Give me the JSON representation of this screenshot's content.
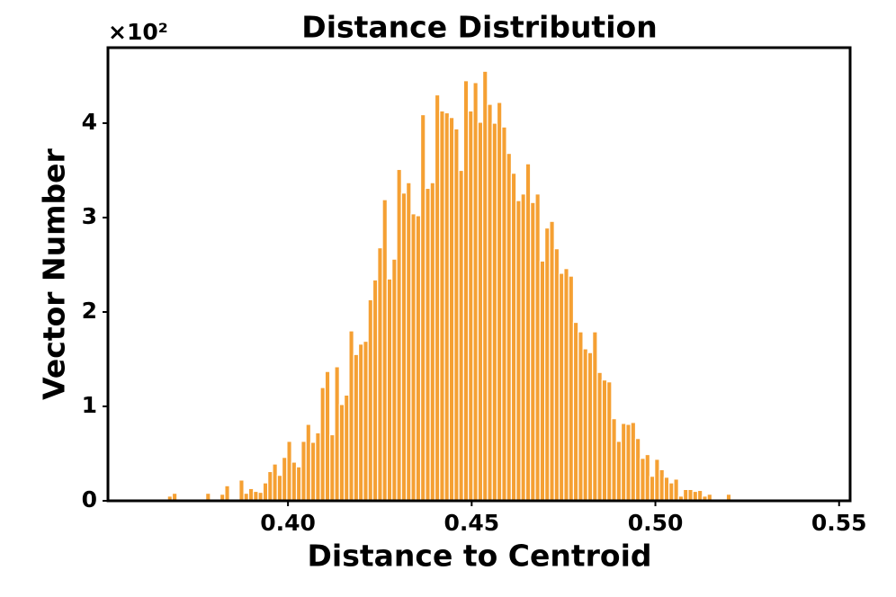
{
  "chart_data": {
    "type": "histogram",
    "title": "Distance Distribution",
    "x_label": "Distance to Centroid",
    "y_label": "Vector Number",
    "y_scale_label": "×10²",
    "color": "#f5a033",
    "bins": [
      0.3672,
      0.3685,
      0.3698,
      0.3711,
      0.3724,
      0.3737,
      0.375,
      0.3763,
      0.3776,
      0.3789,
      0.3802,
      0.3815,
      0.3828,
      0.3841,
      0.3854,
      0.3867,
      0.388,
      0.3893,
      0.3906,
      0.3919,
      0.3932,
      0.3945,
      0.3958,
      0.3971,
      0.3984,
      0.3997,
      0.401,
      0.4023,
      0.4036,
      0.4049,
      0.4062,
      0.4075,
      0.4088,
      0.4101,
      0.4114,
      0.4127,
      0.414,
      0.4153,
      0.4166,
      0.4179,
      0.4192,
      0.4205,
      0.4218,
      0.4231,
      0.4244,
      0.4257,
      0.427,
      0.4283,
      0.4296,
      0.4309,
      0.4322,
      0.4335,
      0.4348,
      0.4361,
      0.4374,
      0.4387,
      0.44,
      0.4413,
      0.4426,
      0.4439,
      0.4452,
      0.4465,
      0.4478,
      0.4491,
      0.4504,
      0.4517,
      0.453,
      0.4543,
      0.4556,
      0.4569,
      0.4582,
      0.4595,
      0.4608,
      0.4621,
      0.4634,
      0.4647,
      0.466,
      0.4673,
      0.4686,
      0.4699,
      0.4712,
      0.4725,
      0.4738,
      0.4751,
      0.4764,
      0.4777,
      0.479,
      0.4803,
      0.4816,
      0.4829,
      0.4842,
      0.4855,
      0.4868,
      0.4881,
      0.4894,
      0.4907,
      0.492,
      0.4933,
      0.4946,
      0.4959,
      0.4972,
      0.4985,
      0.4998,
      0.5011,
      0.5024,
      0.5037,
      0.505,
      0.5063,
      0.5076,
      0.5089,
      0.5102,
      0.5115,
      0.5128,
      0.5141,
      0.5154,
      0.5167,
      0.518,
      0.5193,
      0.5206,
      0.5219,
      0.5232,
      0.5245,
      0.5258,
      0.5271
    ],
    "values": [
      0.05,
      0.08,
      0,
      0,
      0,
      0,
      0,
      0,
      0.08,
      0,
      0,
      0.07,
      0.16,
      0,
      0.02,
      0.22,
      0.08,
      0.13,
      0.1,
      0.09,
      0.19,
      0.31,
      0.39,
      0.27,
      0.46,
      0.63,
      0.41,
      0.36,
      0.63,
      0.81,
      0.62,
      0.72,
      1.2,
      1.37,
      0.7,
      1.42,
      1.02,
      1.12,
      1.8,
      1.55,
      1.66,
      1.69,
      2.13,
      2.34,
      2.68,
      3.19,
      2.35,
      2.56,
      3.51,
      3.26,
      3.37,
      3.04,
      3.02,
      4.09,
      3.31,
      3.37,
      4.3,
      4.13,
      4.11,
      4.06,
      3.94,
      3.5,
      4.45,
      4.13,
      4.43,
      4.01,
      4.55,
      4.2,
      4.0,
      4.22,
      3.96,
      3.68,
      3.47,
      3.18,
      3.25,
      3.57,
      3.16,
      3.25,
      2.54,
      2.89,
      2.96,
      2.67,
      2.41,
      2.46,
      2.38,
      1.89,
      1.79,
      1.61,
      1.57,
      1.79,
      1.36,
      1.28,
      1.26,
      0.87,
      0.63,
      0.82,
      0.81,
      0.83,
      0.66,
      0.45,
      0.49,
      0.26,
      0.44,
      0.33,
      0.25,
      0.19,
      0.23,
      0.05,
      0.12,
      0.12,
      0.1,
      0.11,
      0.05,
      0.07,
      0,
      0.02,
      0.01,
      0.07,
      0,
      0,
      0,
      0.02,
      0.01
    ],
    "xlim": [
      0.351,
      0.553
    ],
    "xticks": [
      {
        "value": 0.4,
        "label": "0.40"
      },
      0.45,
      {
        "value": 0.5,
        "label": "0.50"
      },
      0.55
    ],
    "ylim": [
      0,
      4.8
    ],
    "yticks": [
      0,
      1,
      2,
      3,
      4
    ],
    "grid": false
  }
}
